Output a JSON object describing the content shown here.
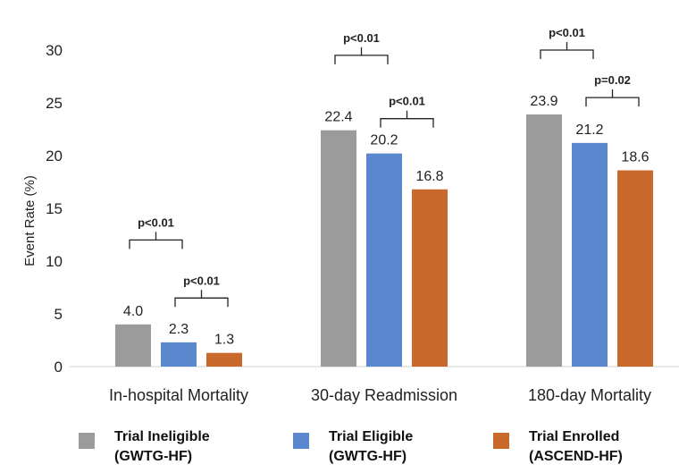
{
  "chart_data": {
    "type": "bar",
    "ylabel": "Event Rate (%)",
    "ylim": [
      0,
      30
    ],
    "yticks": [
      0,
      5,
      10,
      15,
      20,
      25,
      30
    ],
    "categories": [
      "In-hospital Mortality",
      "30-day Readmission",
      "180-day Mortality"
    ],
    "series": [
      {
        "name": "Trial Ineligible (GWTG-HF)",
        "legend_line1": "Trial Ineligible",
        "legend_line2": "(GWTG-HF)",
        "color": "#9b9b9b",
        "values": [
          4.0,
          22.4,
          23.9
        ],
        "labels": [
          "4.0",
          "22.4",
          "23.9"
        ]
      },
      {
        "name": "Trial Eligible (GWTG-HF)",
        "legend_line1": "Trial Eligible",
        "legend_line2": "(GWTG-HF)",
        "color": "#5b87cf",
        "values": [
          2.3,
          20.2,
          21.2
        ],
        "labels": [
          "2.3",
          "20.2",
          "21.2"
        ]
      },
      {
        "name": "Trial Enrolled (ASCEND-HF)",
        "legend_line1": "Trial Enrolled",
        "legend_line2": "(ASCEND-HF)",
        "color": "#c9692b",
        "values": [
          1.3,
          16.8,
          18.6
        ],
        "labels": [
          "1.3",
          "16.8",
          "18.6"
        ]
      }
    ],
    "annotations": [
      {
        "category": 0,
        "from_series": 0,
        "to_series": 1,
        "level": 12,
        "text": "p<0.01"
      },
      {
        "category": 0,
        "from_series": 1,
        "to_series": 2,
        "level": 6.5,
        "text": "p<0.01"
      },
      {
        "category": 1,
        "from_series": 0,
        "to_series": 1,
        "level": 29.5,
        "text": "p<0.01"
      },
      {
        "category": 1,
        "from_series": 1,
        "to_series": 2,
        "level": 23.5,
        "text": "p<0.01"
      },
      {
        "category": 2,
        "from_series": 0,
        "to_series": 1,
        "level": 30,
        "text": "p<0.01"
      },
      {
        "category": 2,
        "from_series": 1,
        "to_series": 2,
        "level": 25.5,
        "text": "p=0.02"
      }
    ]
  }
}
